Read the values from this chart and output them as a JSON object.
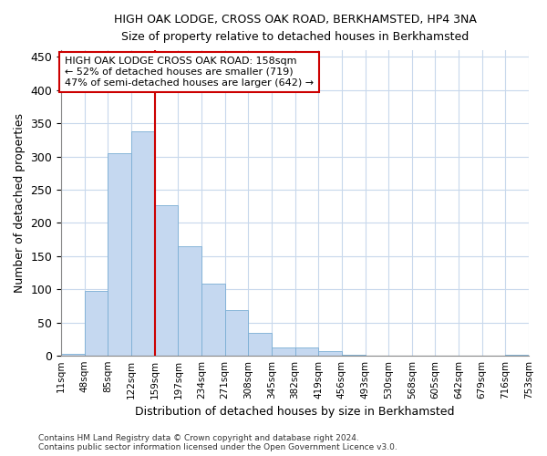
{
  "title_line1": "HIGH OAK LODGE, CROSS OAK ROAD, BERKHAMSTED, HP4 3NA",
  "title_line2": "Size of property relative to detached houses in Berkhamsted",
  "xlabel": "Distribution of detached houses by size in Berkhamsted",
  "ylabel": "Number of detached properties",
  "footnote": "Contains HM Land Registry data © Crown copyright and database right 2024.\nContains public sector information licensed under the Open Government Licence v3.0.",
  "bin_labels": [
    "11sqm",
    "48sqm",
    "85sqm",
    "122sqm",
    "159sqm",
    "197sqm",
    "234sqm",
    "271sqm",
    "308sqm",
    "345sqm",
    "382sqm",
    "419sqm",
    "456sqm",
    "493sqm",
    "530sqm",
    "568sqm",
    "605sqm",
    "642sqm",
    "679sqm",
    "716sqm",
    "753sqm"
  ],
  "bar_values": [
    3,
    97,
    305,
    338,
    227,
    165,
    109,
    68,
    35,
    13,
    12,
    7,
    2,
    0,
    0,
    0,
    0,
    0,
    0,
    2
  ],
  "bar_color": "#c5d8f0",
  "bar_edge_color": "#7aaed4",
  "grid_color": "#c8d8ec",
  "reference_line_x": 4.0,
  "reference_line_color": "#cc0000",
  "annotation_text": "HIGH OAK LODGE CROSS OAK ROAD: 158sqm\n← 52% of detached houses are smaller (719)\n47% of semi-detached houses are larger (642) →",
  "annotation_box_color": "#ffffff",
  "annotation_box_edge": "#cc0000",
  "ylim": [
    0,
    460
  ],
  "yticks": [
    0,
    50,
    100,
    150,
    200,
    250,
    300,
    350,
    400,
    450
  ],
  "background_color": "#ffffff",
  "plot_background": "#ffffff"
}
